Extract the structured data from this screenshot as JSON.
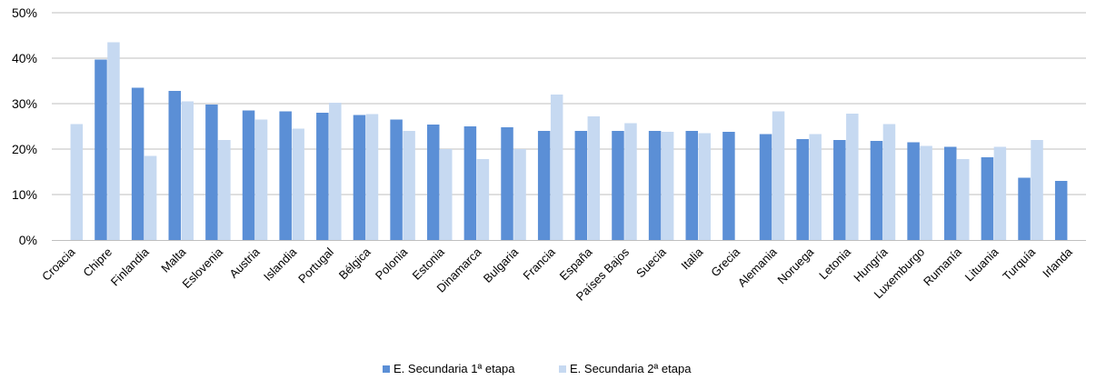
{
  "chart_data": {
    "type": "bar",
    "categories": [
      "Croacia",
      "Chipre",
      "Finlandia",
      "Malta",
      "Eslovenia",
      "Austria",
      "Islandia",
      "Portugal",
      "Bélgica",
      "Polonia",
      "Estonia",
      "Dinamarca",
      "Bulgaria",
      "Francia",
      "España",
      "Países Bajos",
      "Suecia",
      "Italia",
      "Grecia",
      "Alemania",
      "Noruega",
      "Letonia",
      "Hungría",
      "Luxemburgo",
      "Rumanía",
      "Lituania",
      "Turquía",
      "Irlanda"
    ],
    "series": [
      {
        "name": "E. Secundaria 1ª etapa",
        "color": "#5b8fd6",
        "values": [
          null,
          39.7,
          33.5,
          32.8,
          29.8,
          28.5,
          28.3,
          28.0,
          27.5,
          26.5,
          25.4,
          25.0,
          24.8,
          24.0,
          24.0,
          24.0,
          24.0,
          24.0,
          23.8,
          23.3,
          22.2,
          22.0,
          21.8,
          21.5,
          20.5,
          18.2,
          13.7,
          13.0
        ]
      },
      {
        "name": "E. Secundaria 2ª etapa",
        "color": "#c6d9f1",
        "values": [
          25.5,
          43.5,
          18.5,
          30.5,
          22.0,
          26.5,
          24.5,
          30.2,
          27.7,
          24.0,
          20.0,
          17.8,
          20.0,
          32.0,
          27.2,
          25.7,
          23.8,
          23.5,
          null,
          28.3,
          23.3,
          27.8,
          25.5,
          20.7,
          17.8,
          20.5,
          22.0,
          null
        ]
      }
    ],
    "yticks": [
      "0%",
      "10%",
      "20%",
      "30%",
      "40%",
      "50%"
    ],
    "ylim": [
      0,
      50
    ],
    "grid": true,
    "legend_position": "bottom-center"
  }
}
